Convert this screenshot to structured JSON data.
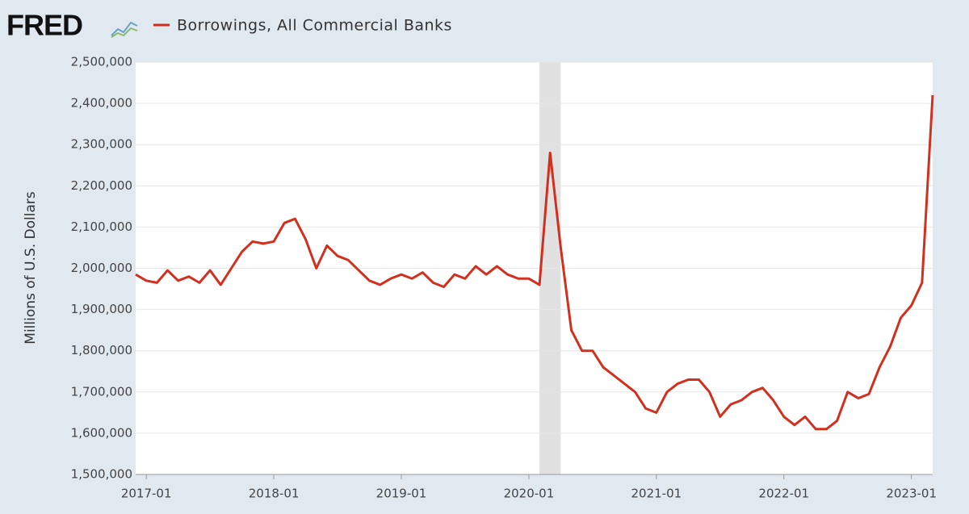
{
  "logo": "FRED",
  "chart_data": {
    "type": "line",
    "ylabel": "Millions of U.S. Dollars",
    "x": [
      "2016-12",
      "2017-01",
      "2017-02",
      "2017-03",
      "2017-04",
      "2017-05",
      "2017-06",
      "2017-07",
      "2017-08",
      "2017-09",
      "2017-10",
      "2017-11",
      "2017-12",
      "2018-01",
      "2018-02",
      "2018-03",
      "2018-04",
      "2018-05",
      "2018-06",
      "2018-07",
      "2018-08",
      "2018-09",
      "2018-10",
      "2018-11",
      "2018-12",
      "2019-01",
      "2019-02",
      "2019-03",
      "2019-04",
      "2019-05",
      "2019-06",
      "2019-07",
      "2019-08",
      "2019-09",
      "2019-10",
      "2019-11",
      "2019-12",
      "2020-01",
      "2020-02",
      "2020-03",
      "2020-04",
      "2020-05",
      "2020-06",
      "2020-07",
      "2020-08",
      "2020-09",
      "2020-10",
      "2020-11",
      "2020-12",
      "2021-01",
      "2021-02",
      "2021-03",
      "2021-04",
      "2021-05",
      "2021-06",
      "2021-07",
      "2021-08",
      "2021-09",
      "2021-10",
      "2021-11",
      "2021-12",
      "2022-01",
      "2022-02",
      "2022-03",
      "2022-04",
      "2022-05",
      "2022-06",
      "2022-07",
      "2022-08",
      "2022-09",
      "2022-10",
      "2022-11",
      "2022-12",
      "2023-01",
      "2023-02",
      "2023-03"
    ],
    "series": [
      {
        "name": "Borrowings, All Commercial Banks",
        "color": "#d2301f",
        "values": [
          1985000,
          1970000,
          1965000,
          1995000,
          1970000,
          1980000,
          1965000,
          1995000,
          1960000,
          2000000,
          2040000,
          2065000,
          2060000,
          2065000,
          2110000,
          2120000,
          2070000,
          2000000,
          2055000,
          2030000,
          2020000,
          1995000,
          1970000,
          1960000,
          1975000,
          1985000,
          1975000,
          1990000,
          1965000,
          1955000,
          1985000,
          1975000,
          2005000,
          1985000,
          2005000,
          1985000,
          1975000,
          1975000,
          1960000,
          2280000,
          2050000,
          1850000,
          1800000,
          1800000,
          1760000,
          1740000,
          1720000,
          1700000,
          1660000,
          1650000,
          1700000,
          1720000,
          1730000,
          1730000,
          1700000,
          1640000,
          1670000,
          1680000,
          1700000,
          1710000,
          1680000,
          1640000,
          1620000,
          1640000,
          1610000,
          1610000,
          1630000,
          1700000,
          1685000,
          1695000,
          1760000,
          1810000,
          1880000,
          1910000,
          1965000,
          2420000
        ]
      }
    ],
    "xlim": [
      "2016-12",
      "2023-03"
    ],
    "xticks": [
      "2017-01",
      "2018-01",
      "2019-01",
      "2020-01",
      "2021-01",
      "2022-01",
      "2023-01"
    ],
    "ylim": [
      1500000,
      2500000
    ],
    "yticks": [
      {
        "value": 1500000,
        "label": "1,500,000"
      },
      {
        "value": 1600000,
        "label": "1,600,000"
      },
      {
        "value": 1700000,
        "label": "1,700,000"
      },
      {
        "value": 1800000,
        "label": "1,800,000"
      },
      {
        "value": 1900000,
        "label": "1,900,000"
      },
      {
        "value": 2000000,
        "label": "2,000,000"
      },
      {
        "value": 2100000,
        "label": "2,100,000"
      },
      {
        "value": 2200000,
        "label": "2,200,000"
      },
      {
        "value": 2300000,
        "label": "2,300,000"
      },
      {
        "value": 2400000,
        "label": "2,400,000"
      },
      {
        "value": 2500000,
        "label": "2,500,000"
      }
    ],
    "shaded_periods": [
      [
        "2020-02",
        "2020-04"
      ]
    ],
    "grid": true
  }
}
